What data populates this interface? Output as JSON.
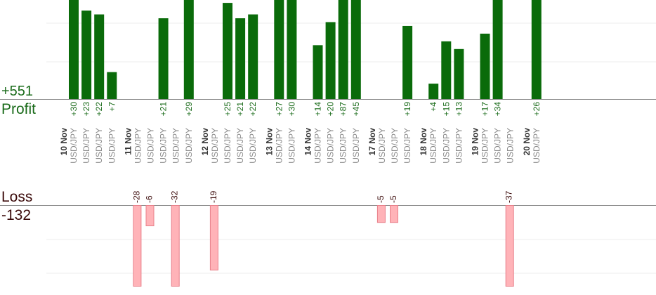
{
  "summary": {
    "profit_total": "+551",
    "profit_label": "Profit",
    "loss_label": "Loss",
    "loss_total": "-132"
  },
  "chart_data": {
    "type": "bar",
    "colors": {
      "profit": "#0a6b0a",
      "loss": "#ffb3b8",
      "loss_border": "#e8808a",
      "profit_text": "#1a6b1a",
      "loss_text": "#3b0a0a",
      "label_gray": "#8a8a8a",
      "date_text": "#333333",
      "grid": "#eeeeee",
      "axis": "#888888"
    },
    "dates": [
      "10 Nov",
      "11 Nov",
      "12 Nov",
      "13 Nov",
      "14 Nov",
      "17 Nov",
      "18 Nov",
      "19 Nov",
      "20 Nov"
    ],
    "profit_scale": {
      "baseline_value": 0,
      "reference_value": 21,
      "reference_label": "+21"
    },
    "trades": [
      {
        "date": "10 Nov",
        "pair": "USD/JPY",
        "profit": 30
      },
      {
        "date": "10 Nov",
        "pair": "USD/JPY",
        "profit": 23
      },
      {
        "date": "10 Nov",
        "pair": "USD/JPY",
        "profit": 22
      },
      {
        "date": "10 Nov",
        "pair": "USD/JPY",
        "profit": 7
      },
      {
        "date": "11 Nov",
        "pair": "USD/JPY",
        "loss": -28
      },
      {
        "date": "11 Nov",
        "pair": "USD/JPY",
        "loss": -6
      },
      {
        "date": "11 Nov",
        "pair": "USD/JPY",
        "profit": 21
      },
      {
        "date": "11 Nov",
        "pair": "USD/JPY",
        "loss": -32
      },
      {
        "date": "11 Nov",
        "pair": "USD/JPY",
        "profit": 29
      },
      {
        "date": "12 Nov",
        "pair": "USD/JPY",
        "loss": -19
      },
      {
        "date": "12 Nov",
        "pair": "USD/JPY",
        "profit": 25
      },
      {
        "date": "12 Nov",
        "pair": "USD/JPY",
        "profit": 21
      },
      {
        "date": "12 Nov",
        "pair": "USD/JPY",
        "profit": 22
      },
      {
        "date": "13 Nov",
        "pair": "USD/JPY",
        "profit": 27
      },
      {
        "date": "13 Nov",
        "pair": "USD/JPY",
        "profit": 30
      },
      {
        "date": "14 Nov",
        "pair": "USD/JPY",
        "profit": 14
      },
      {
        "date": "14 Nov",
        "pair": "USD/JPY",
        "profit": 20
      },
      {
        "date": "14 Nov",
        "pair": "USD/JPY",
        "profit": 87
      },
      {
        "date": "14 Nov",
        "pair": "USD/JPY",
        "profit": 45
      },
      {
        "date": "17 Nov",
        "pair": "USD/JPY",
        "loss": -5
      },
      {
        "date": "17 Nov",
        "pair": "USD/JPY",
        "loss": -5
      },
      {
        "date": "17 Nov",
        "pair": "USD/JPY",
        "profit": 19
      },
      {
        "date": "18 Nov",
        "pair": "USD/JPY",
        "profit": 4
      },
      {
        "date": "18 Nov",
        "pair": "USD/JPY",
        "profit": 15
      },
      {
        "date": "18 Nov",
        "pair": "USD/JPY",
        "profit": 13
      },
      {
        "date": "19 Nov",
        "pair": "USD/JPY",
        "profit": 17
      },
      {
        "date": "19 Nov",
        "pair": "USD/JPY",
        "profit": 34
      },
      {
        "date": "19 Nov",
        "pair": "USD/JPY",
        "loss": -37
      },
      {
        "date": "20 Nov",
        "pair": "USD/JPY",
        "profit": 26
      }
    ]
  }
}
